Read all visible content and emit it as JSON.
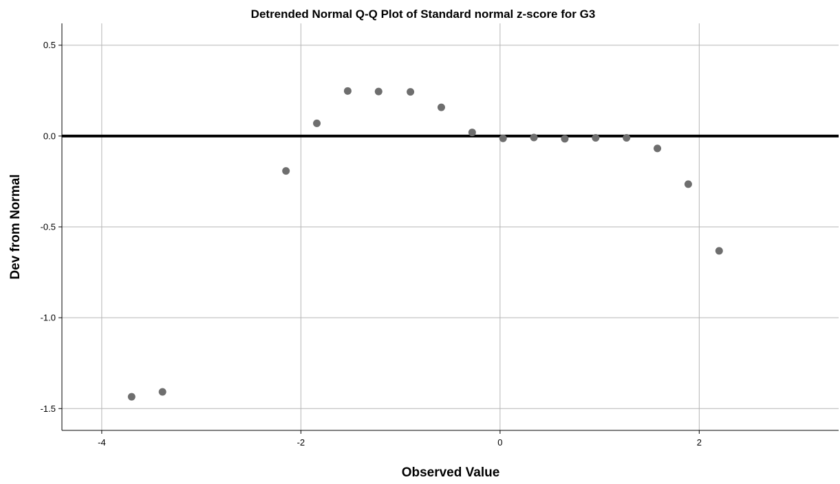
{
  "chart_data": {
    "type": "scatter",
    "title": "Detrended Normal Q-Q Plot of Standard normal z-score for G3",
    "xlabel": "Observed Value",
    "ylabel": "Dev from Normal",
    "xlim": [
      -4.4,
      3.4
    ],
    "ylim": [
      -1.62,
      0.62
    ],
    "x_ticks": [
      -4,
      -2,
      0,
      2
    ],
    "x_tick_labels": [
      "-4",
      "-2",
      "0",
      "2"
    ],
    "y_ticks": [
      0.5,
      0.0,
      -0.5,
      -1.0,
      -1.5
    ],
    "y_tick_labels": [
      "0.5",
      "0.0",
      "-0.5",
      "-1.0",
      "-1.5"
    ],
    "grid": true,
    "reference_line_y": 0.0,
    "point_color": "#6e6e6e",
    "points": [
      {
        "x": -3.7,
        "y": -1.435
      },
      {
        "x": -3.39,
        "y": -1.408
      },
      {
        "x": -2.15,
        "y": -0.192
      },
      {
        "x": -1.84,
        "y": 0.07
      },
      {
        "x": -1.53,
        "y": 0.248
      },
      {
        "x": -1.22,
        "y": 0.245
      },
      {
        "x": -0.9,
        "y": 0.243
      },
      {
        "x": -0.59,
        "y": 0.158
      },
      {
        "x": -0.28,
        "y": 0.02
      },
      {
        "x": 0.03,
        "y": -0.013
      },
      {
        "x": 0.34,
        "y": -0.008
      },
      {
        "x": 0.65,
        "y": -0.015
      },
      {
        "x": 0.96,
        "y": -0.01
      },
      {
        "x": 1.27,
        "y": -0.01
      },
      {
        "x": 1.58,
        "y": -0.068
      },
      {
        "x": 1.89,
        "y": -0.265
      },
      {
        "x": 2.2,
        "y": -0.632
      }
    ]
  }
}
